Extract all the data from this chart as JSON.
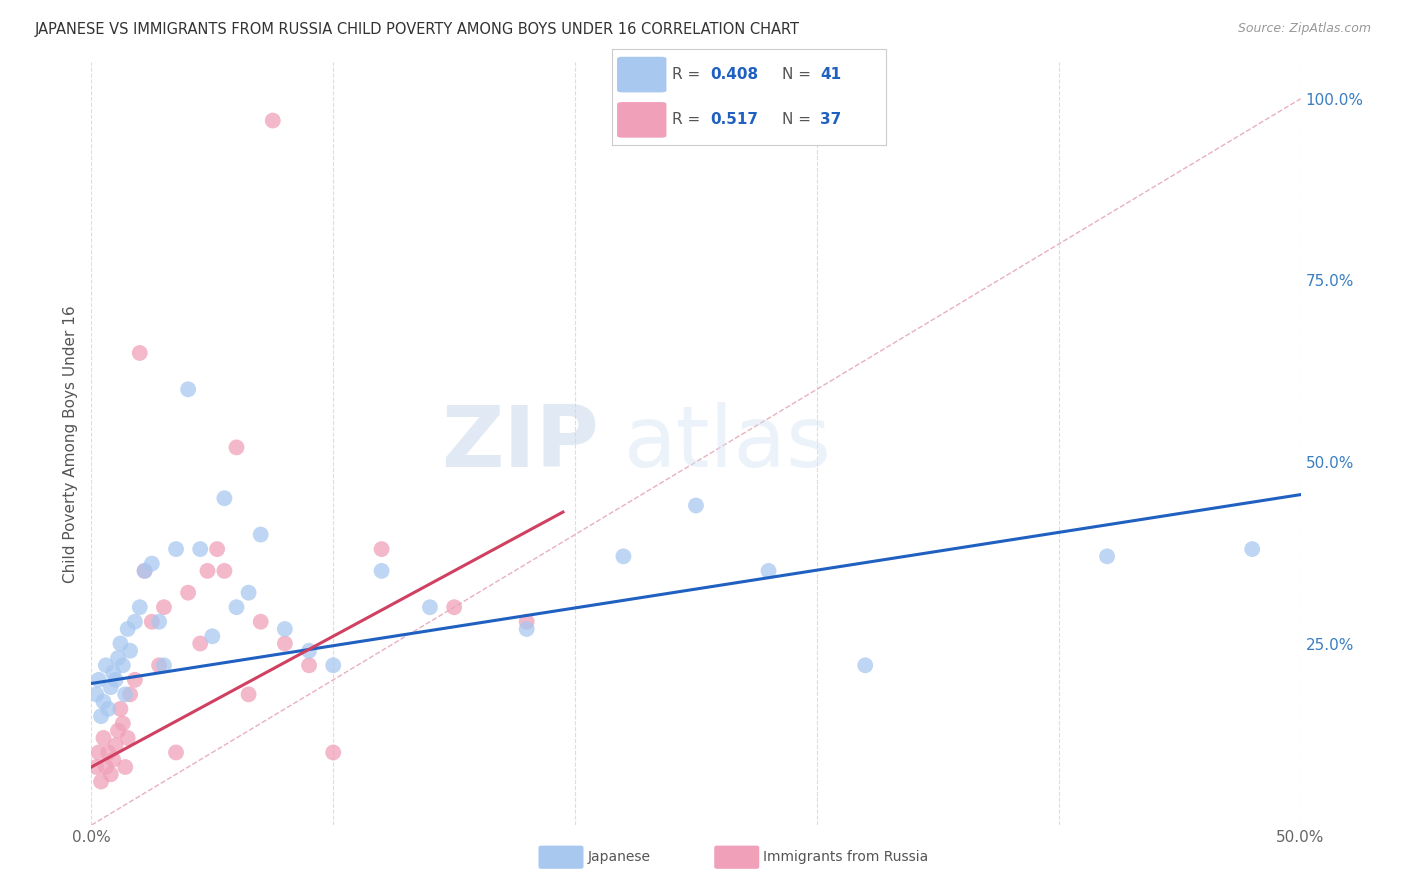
{
  "title": "JAPANESE VS IMMIGRANTS FROM RUSSIA CHILD POVERTY AMONG BOYS UNDER 16 CORRELATION CHART",
  "source": "Source: ZipAtlas.com",
  "ylabel_label": "Child Poverty Among Boys Under 16",
  "xlim": [
    0.0,
    0.5
  ],
  "ylim": [
    0.0,
    1.05
  ],
  "xtick_pos": [
    0.0,
    0.1,
    0.2,
    0.3,
    0.4,
    0.5
  ],
  "xtick_labels": [
    "0.0%",
    "",
    "",
    "",
    "",
    "50.0%"
  ],
  "ytick_positions": [
    0.0,
    0.25,
    0.5,
    0.75,
    1.0
  ],
  "ytick_labels": [
    "",
    "25.0%",
    "50.0%",
    "75.0%",
    "100.0%"
  ],
  "grid_color": "#dddddd",
  "background_color": "#ffffff",
  "japanese_color": "#a8c8f0",
  "russia_color": "#f0a0b8",
  "japanese_line_color": "#2060c0",
  "russia_line_color": "#d04060",
  "diagonal_color": "#e8b0c0",
  "watermark_zip": "ZIP",
  "watermark_atlas": "atlas",
  "legend_R_japanese": "0.408",
  "legend_N_japanese": "41",
  "legend_R_russia": "0.517",
  "legend_N_russia": "37",
  "japanese_x": [
    0.002,
    0.003,
    0.004,
    0.005,
    0.006,
    0.007,
    0.008,
    0.009,
    0.01,
    0.011,
    0.012,
    0.013,
    0.014,
    0.015,
    0.016,
    0.018,
    0.02,
    0.022,
    0.025,
    0.028,
    0.03,
    0.035,
    0.04,
    0.045,
    0.05,
    0.055,
    0.06,
    0.065,
    0.07,
    0.08,
    0.09,
    0.1,
    0.12,
    0.14,
    0.18,
    0.22,
    0.25,
    0.28,
    0.32,
    0.42,
    0.48
  ],
  "japanese_y": [
    0.18,
    0.2,
    0.15,
    0.17,
    0.22,
    0.16,
    0.19,
    0.21,
    0.2,
    0.23,
    0.25,
    0.22,
    0.18,
    0.27,
    0.24,
    0.28,
    0.3,
    0.35,
    0.36,
    0.28,
    0.22,
    0.38,
    0.6,
    0.38,
    0.26,
    0.45,
    0.3,
    0.32,
    0.4,
    0.27,
    0.24,
    0.22,
    0.35,
    0.3,
    0.27,
    0.37,
    0.44,
    0.35,
    0.22,
    0.37,
    0.38
  ],
  "russia_x": [
    0.002,
    0.003,
    0.004,
    0.005,
    0.006,
    0.007,
    0.008,
    0.009,
    0.01,
    0.011,
    0.012,
    0.013,
    0.014,
    0.015,
    0.016,
    0.018,
    0.02,
    0.022,
    0.025,
    0.028,
    0.03,
    0.035,
    0.04,
    0.045,
    0.048,
    0.052,
    0.055,
    0.06,
    0.065,
    0.07,
    0.075,
    0.08,
    0.09,
    0.1,
    0.12,
    0.15,
    0.18
  ],
  "russia_y": [
    0.08,
    0.1,
    0.06,
    0.12,
    0.08,
    0.1,
    0.07,
    0.09,
    0.11,
    0.13,
    0.16,
    0.14,
    0.08,
    0.12,
    0.18,
    0.2,
    0.65,
    0.35,
    0.28,
    0.22,
    0.3,
    0.1,
    0.32,
    0.25,
    0.35,
    0.38,
    0.35,
    0.52,
    0.18,
    0.28,
    0.97,
    0.25,
    0.22,
    0.1,
    0.38,
    0.3,
    0.28
  ],
  "regression_japanese": {
    "slope": 0.52,
    "intercept": 0.195
  },
  "regression_russia": {
    "slope": 1.8,
    "intercept": 0.08
  },
  "russia_line_xmax": 0.195
}
